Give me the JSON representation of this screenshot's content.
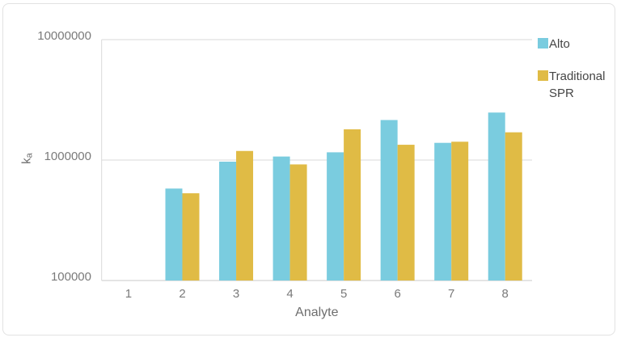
{
  "chart_data": {
    "type": "bar",
    "scale": "log",
    "title": "",
    "xlabel": "Analyte",
    "ylabel": "ka",
    "ylabel_main": "k",
    "ylabel_sub": "a",
    "categories": [
      "1",
      "2",
      "3",
      "4",
      "5",
      "6",
      "7",
      "8"
    ],
    "series": [
      {
        "name": "Alto",
        "color": "#7accdf",
        "values": [
          null,
          580000,
          970000,
          1070000,
          1160000,
          2150000,
          1390000,
          2480000
        ]
      },
      {
        "name": "Traditional SPR",
        "color": "#e0bb45",
        "values": [
          null,
          530000,
          1190000,
          920000,
          1800000,
          1340000,
          1420000,
          1700000
        ]
      }
    ],
    "y_ticks": [
      {
        "value": 100000,
        "label": "100000"
      },
      {
        "value": 1000000,
        "label": "1000000"
      },
      {
        "value": 10000000,
        "label": "10000000"
      }
    ],
    "ylim": [
      100000,
      10000000
    ],
    "grid": "horizontal",
    "legend_position": "top-right"
  },
  "colors": {
    "axis_text": "#7a7a7a",
    "axis_title_text": "#6e6e6e",
    "legend_text": "#454545",
    "gridline": "#d9d9d9",
    "baseline": "#c9c9c9",
    "card_border": "#e2e2e2",
    "background": "#ffffff"
  }
}
